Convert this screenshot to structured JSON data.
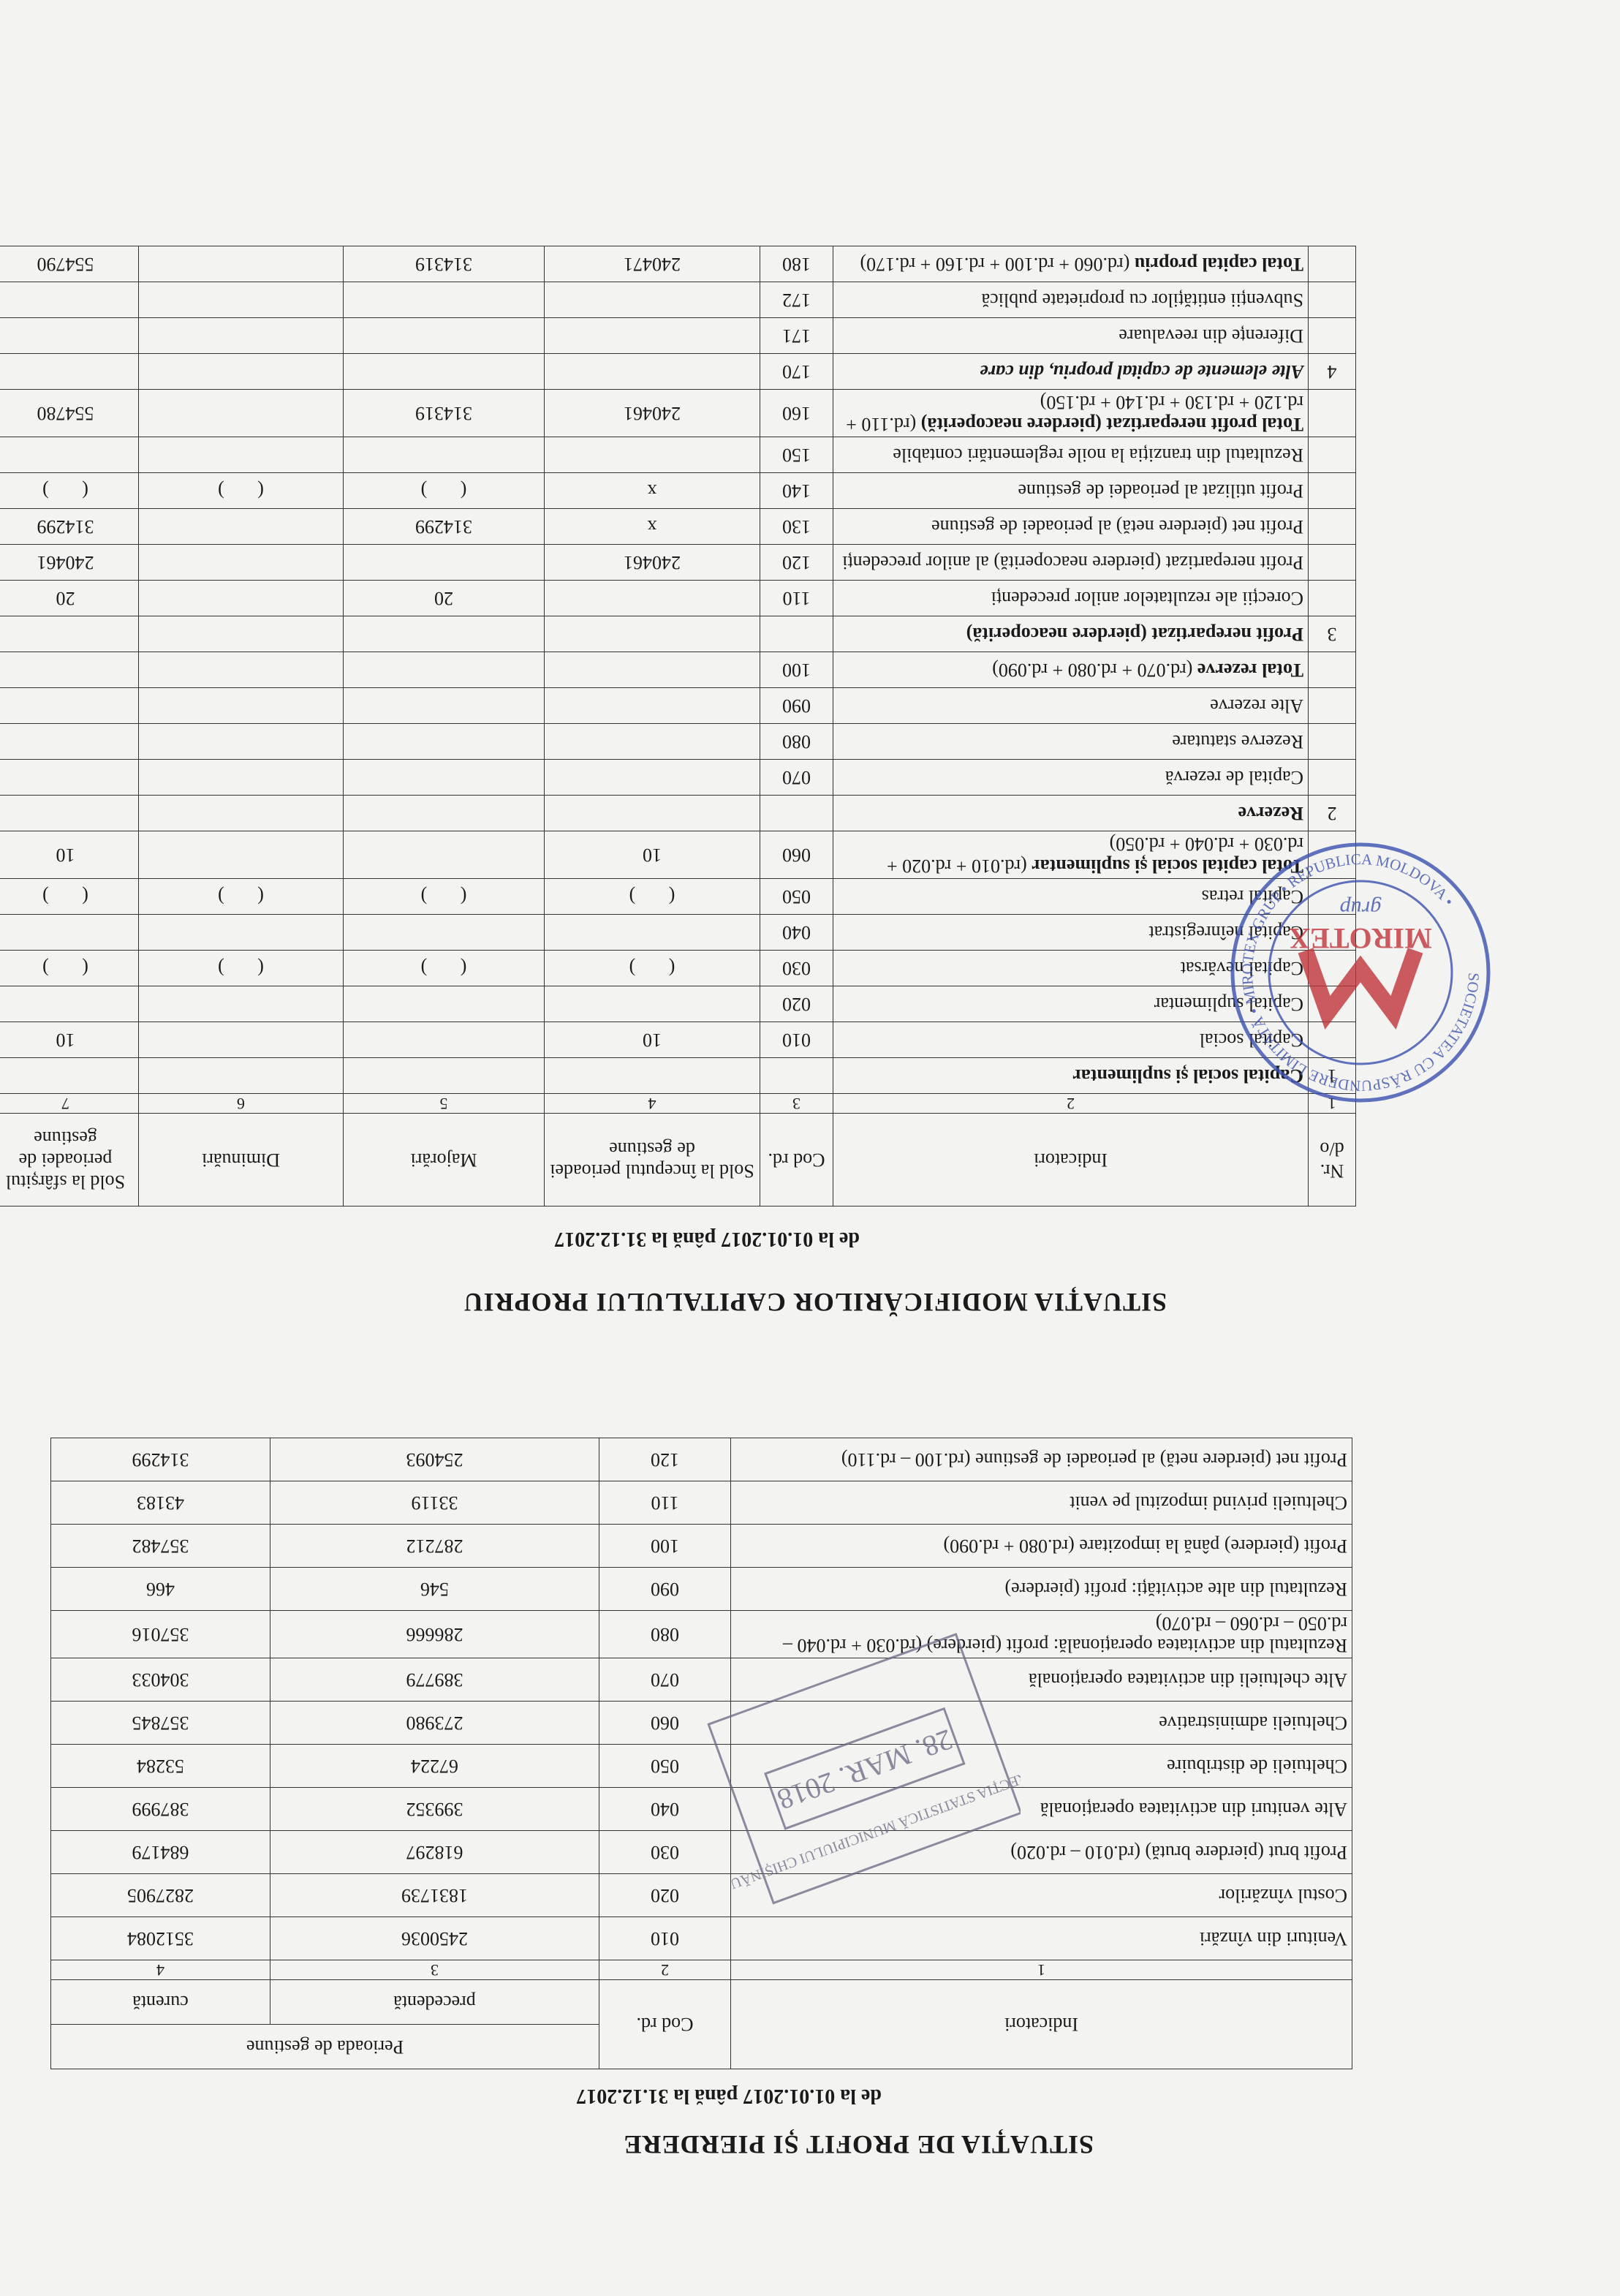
{
  "profit_loss": {
    "title": "SITUAȚIA DE PROFIT ȘI PIERDERE",
    "period": "de la 01.01.2017  până la 31.12.2017",
    "header": {
      "indicators": "Indicatori",
      "code": "Cod rd.",
      "period_group": "Perioada de gestiune",
      "previous": "precedentă",
      "current": "curentă"
    },
    "column_numbers": [
      "1",
      "2",
      "3",
      "4"
    ],
    "rows": [
      {
        "label": "Venituri din vînzări",
        "code": "010",
        "previous": "2450036",
        "current": "3512084"
      },
      {
        "label": "Costul vînzărilor",
        "code": "020",
        "previous": "1831739",
        "current": "2827905"
      },
      {
        "label": "Profit brut (pierdere brută)  (rd.010 – rd.020)",
        "code": "030",
        "previous": "618297",
        "current": "684179"
      },
      {
        "label": "Alte venituri din activitatea operațională",
        "code": "040",
        "previous": "399352",
        "current": "387999"
      },
      {
        "label": "Cheltuieli de distribuire",
        "code": "050",
        "previous": "67224",
        "current": "53284"
      },
      {
        "label": "Cheltuieli administrative",
        "code": "060",
        "previous": "273980",
        "current": "357845"
      },
      {
        "label": "Alte cheltuieli din activitatea operațională",
        "code": "070",
        "previous": "389779",
        "current": "304033"
      },
      {
        "label": "Rezultatul din activitatea operațională: profit (pierdere) (rd.030 + rd.040 – rd.050 – rd.060 – rd.070)",
        "code": "080",
        "previous": "286666",
        "current": "357016"
      },
      {
        "label": "Rezultatul din alte activități: profit (pierdere)",
        "code": "090",
        "previous": "546",
        "current": "466"
      },
      {
        "label": "Profit (pierdere) până la impozitare (rd.080 + rd.090)",
        "code": "100",
        "previous": "287212",
        "current": "357482"
      },
      {
        "label": "Cheltuieli privind impozitul pe venit",
        "code": "110",
        "previous": "33119",
        "current": "43183"
      },
      {
        "label": "Profit net (pierdere netă) al perioadei de gestiune (rd.100 – rd.110)",
        "code": "120",
        "previous": "254093",
        "current": "314299"
      }
    ]
  },
  "equity_changes": {
    "title": "SITUAȚIA MODIFICĂRILOR CAPITALULUI PROPRIU",
    "period": "de la 01.01.2017  până la 31.12.2017",
    "header": {
      "nr": "Nr. d/o",
      "label": "Indicatori",
      "code": "Cod rd.",
      "start": "Sold la începutul perioadei de gestiune",
      "increase": "Majorări",
      "decrease": "Diminuări",
      "end": "Sold la sfârșitul perioadei de gestiune"
    },
    "column_numbers": [
      "1",
      "2",
      "3",
      "4",
      "5",
      "6",
      "7"
    ],
    "rows": [
      {
        "nr": "1",
        "label": "Capital social și suplimentar"
      },
      {
        "label": "Capital social",
        "code": "010",
        "start": "10",
        "end": "10"
      },
      {
        "label": "Capital suplimentar",
        "code": "020"
      },
      {
        "label": "Capital nevărsat",
        "code": "030",
        "start": "(       )",
        "increase": "(       )",
        "decrease": "(       )",
        "end": "(       )"
      },
      {
        "label": "Capital neînregistrat",
        "code": "040"
      },
      {
        "label": "Capital retras",
        "code": "050",
        "start": "(       )",
        "increase": "(       )",
        "decrease": "(       )",
        "end": "(       )"
      },
      {
        "label": "Total capital social și suplimentar",
        "formula": "(rd.010 + rd.020 + rd.030 + rd.040 + rd.050)",
        "code": "060",
        "start": "10",
        "end": "10"
      },
      {
        "nr": "2",
        "label": "Rezerve"
      },
      {
        "label": "Capital de rezervă",
        "code": "070"
      },
      {
        "label": "Rezerve statutare",
        "code": "080"
      },
      {
        "label": "Alte rezerve",
        "code": "090"
      },
      {
        "label": "Total rezerve",
        "formula": "(rd.070 + rd.080 + rd.090)",
        "code": "100"
      },
      {
        "nr": "3",
        "label": "Profit nerepartizat (pierdere neacoperită)"
      },
      {
        "label": "Corecții ale rezultatelor anilor precedenți",
        "code": "110",
        "increase": "20",
        "end": "20"
      },
      {
        "label": "Profit nerepartizat (pierdere neacoperită) al anilor precedenți",
        "code": "120",
        "start": "240461",
        "end": "240461"
      },
      {
        "label": "Profit net (pierdere netă) al perioadei de gestiune",
        "code": "130",
        "start": "x",
        "increase": "314299",
        "end": "314299"
      },
      {
        "label": "Profit utilizat al perioadei de gestiune",
        "code": "140",
        "start": "x",
        "increase": "(       )",
        "decrease": "(       )",
        "end": "(       )"
      },
      {
        "label": "Rezultatul din tranziția la noile reglementări contabile",
        "code": "150"
      },
      {
        "label": "Total profit nerepartizat (pierdere neacoperită)",
        "formula": "(rd.110 + rd.120 + rd.130 + rd.140 + rd.150)",
        "code": "160",
        "start": "240461",
        "increase": "314319",
        "end": "554780"
      },
      {
        "nr": "4",
        "label": "Alte elemente de capital propriu, din care",
        "code": "170"
      },
      {
        "label": "Diferențe din reevaluare",
        "code": "171"
      },
      {
        "label": "Subvenții entităților cu proprietate publică",
        "code": "172"
      },
      {
        "label": "Total capital propriu",
        "formula": "(rd.060 + rd.100 + rd.160 + rd.170)",
        "code": "180",
        "start": "240471",
        "increase": "314319",
        "end": "554790"
      }
    ]
  },
  "stamps": {
    "registration_date": "28. MAR. 2018",
    "registration_office": "DIRECȚIA STATISTICĂ MUNICIPIULUI CHIȘINĂU",
    "company_name": "MIROTEX",
    "company_subtitle": "grup",
    "company_ring": "SOCIETATEA CU RĂSPUNDERE LIMITATĂ • MIROTEX GRUP • REPUBLICA MOLDOVA •"
  }
}
